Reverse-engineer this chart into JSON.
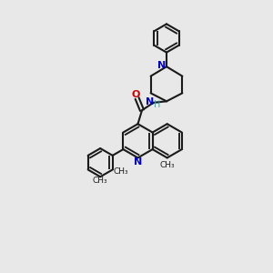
{
  "bg_color": "#e8e8e8",
  "bond_color": "#1a1a1a",
  "N_color": "#0000cc",
  "O_color": "#cc0000",
  "H_color": "#4a9a9a",
  "lw": 1.5,
  "dbl_off": 0.055,
  "figsize": [
    3.0,
    3.0
  ],
  "dpi": 100,
  "xlim": [
    0,
    10
  ],
  "ylim": [
    0,
    10
  ]
}
